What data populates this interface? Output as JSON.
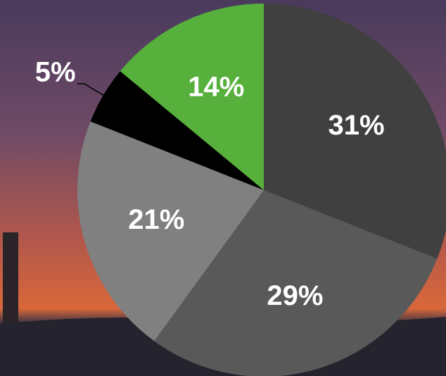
{
  "chart_data": {
    "type": "pie",
    "values": [
      31,
      29,
      21,
      5,
      14
    ],
    "value_labels": [
      "31%",
      "29%",
      "21%",
      "5%",
      "14%"
    ],
    "colors": [
      "#404040",
      "#595959",
      "#808080",
      "#000000",
      "#56b03b"
    ]
  }
}
